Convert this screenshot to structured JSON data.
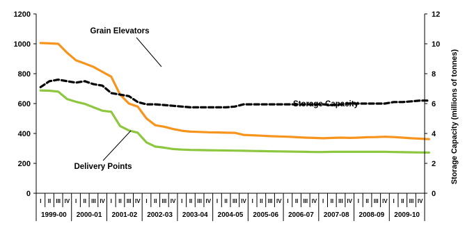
{
  "chart_data": {
    "type": "line",
    "title": "",
    "xlabel": "",
    "ylabel": "",
    "y2label": "Storage Capacity  (millions of tonnes)",
    "ylim": [
      0,
      1200
    ],
    "yticks": [
      0,
      200,
      400,
      600,
      800,
      1000,
      1200
    ],
    "y2lim": [
      0,
      12
    ],
    "y2ticks": [
      0,
      2,
      4,
      6,
      8,
      10,
      12
    ],
    "grid": false,
    "legend": "none",
    "years": [
      "1999-00",
      "2000-01",
      "2001-02",
      "2002-03",
      "2003-04",
      "2004-05",
      "2005-06",
      "2006-07",
      "2007-08",
      "2008-09",
      "2009-10"
    ],
    "quarters": [
      "I",
      "II",
      "III",
      "IV"
    ],
    "series": [
      {
        "name": "Grain Elevators",
        "axis": "left",
        "color": "#F7941D",
        "dash": "solid",
        "values": [
          1005,
          1003,
          1000,
          940,
          890,
          868,
          845,
          812,
          780,
          660,
          600,
          580,
          500,
          455,
          445,
          430,
          418,
          412,
          410,
          408,
          407,
          405,
          404,
          390,
          388,
          385,
          382,
          380,
          378,
          375,
          372,
          370,
          368,
          370,
          372,
          370,
          372,
          375,
          376,
          378,
          376,
          372,
          368,
          365,
          362
        ]
      },
      {
        "name": "Delivery Points",
        "axis": "left",
        "color": "#8DC63F",
        "dash": "solid",
        "values": [
          688,
          686,
          680,
          630,
          612,
          598,
          575,
          552,
          545,
          450,
          420,
          405,
          340,
          312,
          305,
          296,
          292,
          290,
          289,
          288,
          287,
          286,
          285,
          284,
          283,
          282,
          281,
          280,
          279,
          278,
          277,
          276,
          276,
          277,
          277,
          277,
          277,
          277,
          277,
          277,
          276,
          275,
          274,
          273,
          272
        ]
      },
      {
        "name": "Storage Capacity",
        "axis": "right",
        "color": "#000000",
        "dash": "dashed",
        "values": [
          7.1,
          7.5,
          7.6,
          7.5,
          7.4,
          7.5,
          7.3,
          7.2,
          6.7,
          6.6,
          6.5,
          6.1,
          5.95,
          5.95,
          5.9,
          5.85,
          5.8,
          5.75,
          5.75,
          5.75,
          5.75,
          5.75,
          5.8,
          5.95,
          5.95,
          5.95,
          5.95,
          5.95,
          5.95,
          5.95,
          5.95,
          5.95,
          5.95,
          5.9,
          5.95,
          6.0,
          6.0,
          6.0,
          6.0,
          6.0,
          6.1,
          6.1,
          6.15,
          6.2,
          6.2
        ]
      }
    ],
    "annotations": [
      {
        "text": "Grain Elevators",
        "series": "Grain Elevators"
      },
      {
        "text": "Storage Capacity",
        "series": "Storage Capacity"
      },
      {
        "text": "Delivery Points",
        "series": "Delivery Points"
      }
    ]
  }
}
